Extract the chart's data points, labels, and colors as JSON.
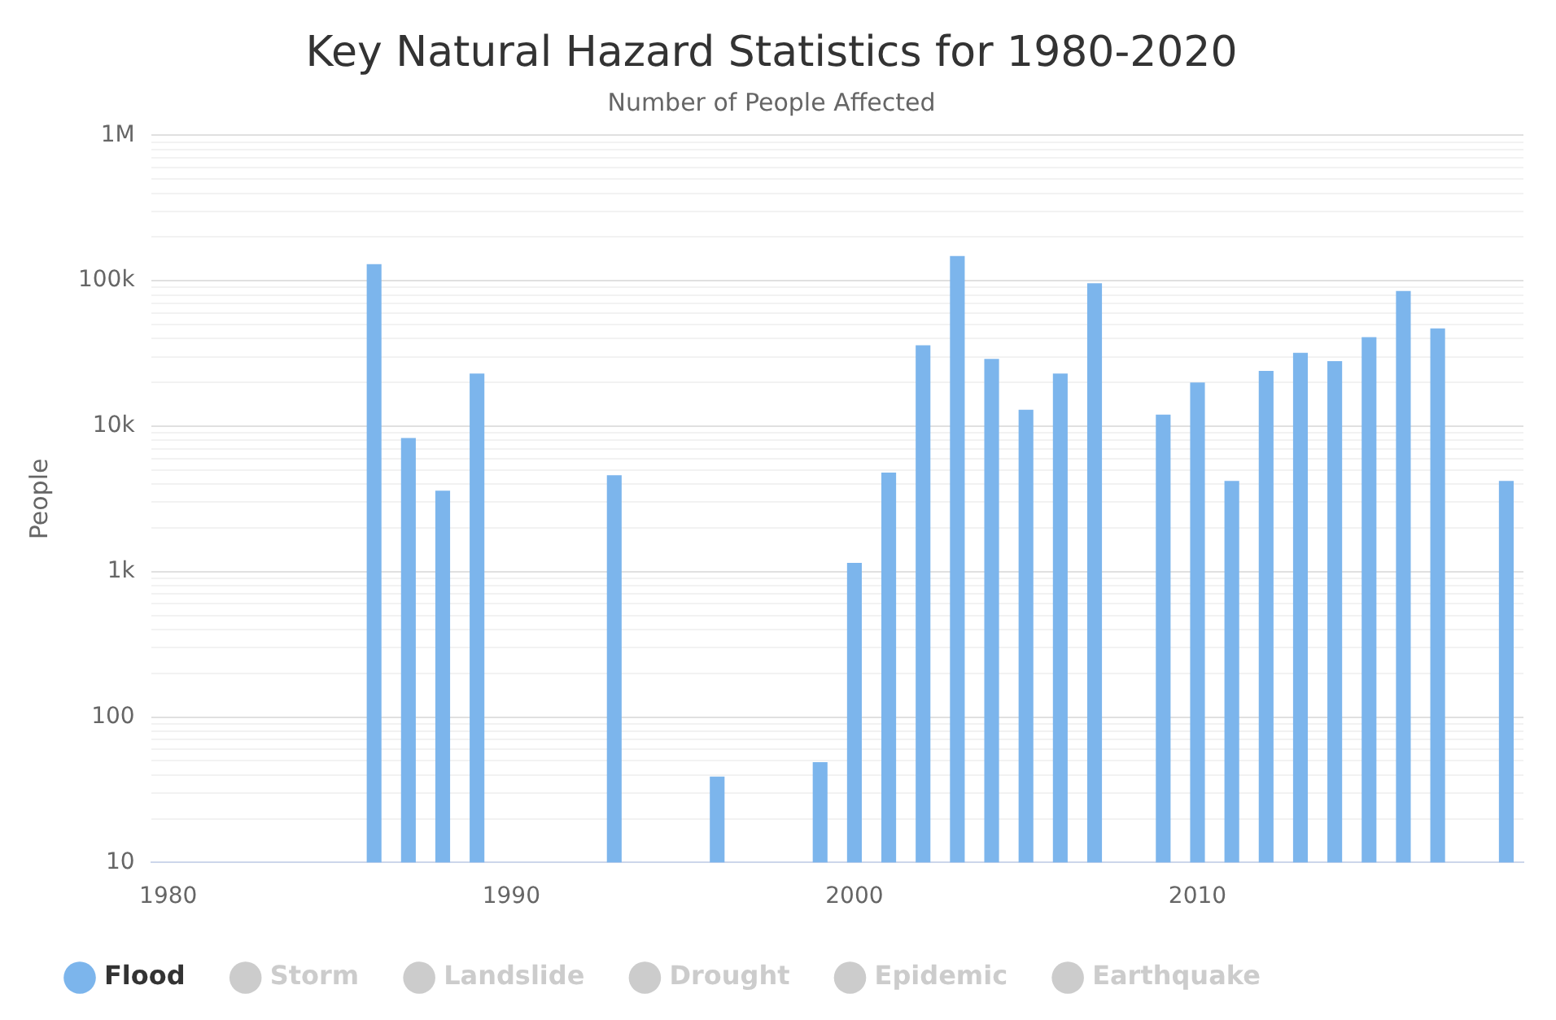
{
  "chart_data": {
    "type": "bar",
    "title": "Key Natural Hazard Statistics for 1980-2020",
    "subtitle": "Number of People Affected",
    "ylabel": "People",
    "x": [
      1986,
      1987,
      1988,
      1989,
      1990,
      1991,
      1992,
      1993,
      1994,
      1995,
      1996,
      1997,
      1998,
      1999,
      2000,
      2001,
      2002,
      2003,
      2004,
      2005,
      2006,
      2007,
      2008,
      2009,
      2010,
      2011,
      2012,
      2013,
      2014,
      2015,
      2016,
      2017,
      2018,
      2019
    ],
    "series": [
      {
        "name": "Flood",
        "color": "#7cb5ec",
        "values": [
          130000,
          8300,
          3600,
          23000,
          null,
          null,
          null,
          4600,
          null,
          null,
          39,
          null,
          null,
          49,
          1150,
          4800,
          36000,
          148000,
          29000,
          13000,
          23000,
          96000,
          null,
          12000,
          20000,
          4200,
          24000,
          32000,
          28000,
          41000,
          85000,
          47000,
          null,
          4200
        ]
      },
      {
        "name": "Storm",
        "color": "#cccccc",
        "values": [
          null,
          null,
          null,
          null,
          null,
          null,
          null,
          null,
          null,
          null,
          null,
          null,
          null,
          null,
          null,
          null,
          null,
          null,
          null,
          null,
          null,
          null,
          null,
          null,
          null,
          null,
          null,
          null,
          null,
          null,
          null,
          null,
          null,
          null
        ]
      },
      {
        "name": "Landslide",
        "color": "#cccccc",
        "values": [
          null,
          null,
          null,
          null,
          null,
          null,
          null,
          null,
          null,
          null,
          null,
          null,
          null,
          null,
          null,
          null,
          null,
          null,
          null,
          null,
          null,
          null,
          null,
          null,
          null,
          null,
          null,
          null,
          null,
          null,
          null,
          null,
          null,
          null
        ]
      },
      {
        "name": "Drought",
        "color": "#cccccc",
        "values": [
          null,
          null,
          null,
          null,
          null,
          null,
          null,
          null,
          null,
          null,
          null,
          null,
          null,
          null,
          null,
          null,
          null,
          null,
          null,
          null,
          null,
          null,
          null,
          null,
          null,
          null,
          null,
          null,
          null,
          null,
          null,
          null,
          null,
          null
        ]
      },
      {
        "name": "Epidemic",
        "color": "#cccccc",
        "values": [
          null,
          null,
          null,
          null,
          null,
          null,
          null,
          null,
          null,
          null,
          null,
          null,
          null,
          null,
          null,
          null,
          null,
          null,
          null,
          null,
          null,
          null,
          null,
          null,
          null,
          null,
          null,
          null,
          null,
          null,
          null,
          null,
          null,
          null
        ]
      },
      {
        "name": "Earthquake",
        "color": "#cccccc",
        "values": [
          null,
          null,
          null,
          null,
          null,
          null,
          null,
          null,
          null,
          null,
          null,
          null,
          null,
          null,
          null,
          null,
          null,
          null,
          null,
          null,
          null,
          null,
          null,
          null,
          null,
          null,
          null,
          null,
          null,
          null,
          null,
          null,
          null,
          null
        ]
      }
    ],
    "xlim": [
      1979.5,
      2019.5
    ],
    "xticks": [
      1980,
      1990,
      2000,
      2010
    ],
    "log": true,
    "ylim": [
      10,
      1000000
    ],
    "yticks": [
      10,
      {
        "value": 20,
        "label": null
      },
      {
        "value": 30,
        "label": null
      },
      {
        "value": 40,
        "label": null
      },
      {
        "value": 50,
        "label": null
      },
      {
        "value": 60,
        "label": null
      },
      {
        "value": 70,
        "label": null
      },
      {
        "value": 80,
        "label": null
      },
      {
        "value": 90,
        "label": null
      },
      100,
      {
        "value": 200,
        "label": null
      },
      {
        "value": 300,
        "label": null
      },
      {
        "value": 400,
        "label": null
      },
      {
        "value": 500,
        "label": null
      },
      {
        "value": 600,
        "label": null
      },
      {
        "value": 700,
        "label": null
      },
      {
        "value": 800,
        "label": null
      },
      {
        "value": 900,
        "label": null
      },
      {
        "value": 1000,
        "label": "1k"
      },
      {
        "value": 2000,
        "label": null
      },
      {
        "value": 3000,
        "label": null
      },
      {
        "value": 4000,
        "label": null
      },
      {
        "value": 5000,
        "label": null
      },
      {
        "value": 6000,
        "label": null
      },
      {
        "value": 7000,
        "label": null
      },
      {
        "value": 8000,
        "label": null
      },
      {
        "value": 9000,
        "label": null
      },
      {
        "value": 10000,
        "label": "10k"
      },
      {
        "value": 20000,
        "label": null
      },
      {
        "value": 30000,
        "label": null
      },
      {
        "value": 40000,
        "label": null
      },
      {
        "value": 50000,
        "label": null
      },
      {
        "value": 60000,
        "label": null
      },
      {
        "value": 70000,
        "label": null
      },
      {
        "value": 80000,
        "label": null
      },
      {
        "value": 90000,
        "label": null
      },
      {
        "value": 100000,
        "label": "100k"
      },
      {
        "value": 200000,
        "label": null
      },
      {
        "value": 300000,
        "label": null
      },
      {
        "value": 400000,
        "label": null
      },
      {
        "value": 500000,
        "label": null
      },
      {
        "value": 600000,
        "label": null
      },
      {
        "value": 700000,
        "label": null
      },
      {
        "value": 800000,
        "label": null
      },
      {
        "value": 900000,
        "label": null
      },
      {
        "value": 1000000,
        "label": "1M"
      }
    ],
    "grid": "y",
    "legend": "bottom"
  }
}
